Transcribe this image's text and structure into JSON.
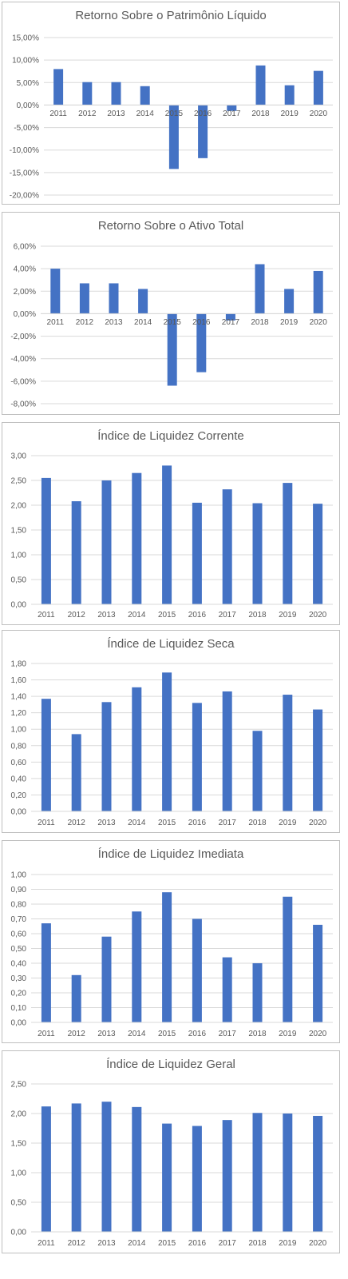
{
  "colors": {
    "bar": "#4472c4",
    "grid": "#d9d9d9",
    "text": "#595959",
    "border": "#bfbfbf"
  },
  "chart_data": [
    {
      "type": "bar",
      "title": "Retorno Sobre o Patrimônio Líquido",
      "categories": [
        "2011",
        "2012",
        "2013",
        "2014",
        "2015",
        "2016",
        "2017",
        "2018",
        "2019",
        "2020"
      ],
      "values": [
        8.0,
        5.1,
        5.1,
        4.2,
        -14.2,
        -11.8,
        -1.3,
        8.8,
        4.4,
        7.6
      ],
      "yticks": [
        "15,00%",
        "10,00%",
        "5,00%",
        "0,00%",
        "-5,00%",
        "-10,00%",
        "-15,00%",
        "-20,00%"
      ],
      "ylim": [
        -20,
        15
      ],
      "grid": true
    },
    {
      "type": "bar",
      "title": "Retorno Sobre o Ativo Total",
      "categories": [
        "2011",
        "2012",
        "2013",
        "2014",
        "2015",
        "2016",
        "2017",
        "2018",
        "2019",
        "2020"
      ],
      "values": [
        4.0,
        2.7,
        2.7,
        2.2,
        -6.4,
        -5.2,
        -0.6,
        4.4,
        2.2,
        3.8
      ],
      "yticks": [
        "6,00%",
        "4,00%",
        "2,00%",
        "0,00%",
        "-2,00%",
        "-4,00%",
        "-6,00%",
        "-8,00%"
      ],
      "ylim": [
        -8,
        6
      ],
      "grid": true
    },
    {
      "type": "bar",
      "title": "Índice de Liquidez Corrente",
      "categories": [
        "2011",
        "2012",
        "2013",
        "2014",
        "2015",
        "2016",
        "2017",
        "2018",
        "2019",
        "2020"
      ],
      "values": [
        2.55,
        2.08,
        2.5,
        2.65,
        2.8,
        2.05,
        2.32,
        2.04,
        2.45,
        2.03
      ],
      "yticks": [
        "3,00",
        "2,50",
        "2,00",
        "1,50",
        "1,00",
        "0,50",
        "0,00"
      ],
      "ylim": [
        0,
        3
      ],
      "grid": true
    },
    {
      "type": "bar",
      "title": "Índice de Liquidez Seca",
      "categories": [
        "2011",
        "2012",
        "2013",
        "2014",
        "2015",
        "2016",
        "2017",
        "2018",
        "2019",
        "2020"
      ],
      "values": [
        1.37,
        0.94,
        1.33,
        1.51,
        1.69,
        1.32,
        1.46,
        0.98,
        1.42,
        1.24
      ],
      "yticks": [
        "1,80",
        "1,60",
        "1,40",
        "1,20",
        "1,00",
        "0,80",
        "0,60",
        "0,40",
        "0,20",
        "0,00"
      ],
      "ylim": [
        0,
        1.8
      ],
      "grid": true
    },
    {
      "type": "bar",
      "title": "Índice de Liquidez Imediata",
      "categories": [
        "2011",
        "2012",
        "2013",
        "2014",
        "2015",
        "2016",
        "2017",
        "2018",
        "2019",
        "2020"
      ],
      "values": [
        0.67,
        0.32,
        0.58,
        0.75,
        0.88,
        0.7,
        0.44,
        0.4,
        0.85,
        0.66
      ],
      "yticks": [
        "1,00",
        "0,90",
        "0,80",
        "0,70",
        "0,60",
        "0,50",
        "0,40",
        "0,30",
        "0,20",
        "0,10",
        "0,00"
      ],
      "ylim": [
        0,
        1.0
      ],
      "grid": true
    },
    {
      "type": "bar",
      "title": "Índice de Liquidez Geral",
      "categories": [
        "2011",
        "2012",
        "2013",
        "2014",
        "2015",
        "2016",
        "2017",
        "2018",
        "2019",
        "2020"
      ],
      "values": [
        2.12,
        2.17,
        2.2,
        2.11,
        1.83,
        1.79,
        1.89,
        2.01,
        2.0,
        1.96
      ],
      "yticks": [
        "2,50",
        "2,00",
        "1,50",
        "1,00",
        "0,50",
        "0,00"
      ],
      "ylim": [
        0,
        2.5
      ],
      "grid": true
    }
  ]
}
